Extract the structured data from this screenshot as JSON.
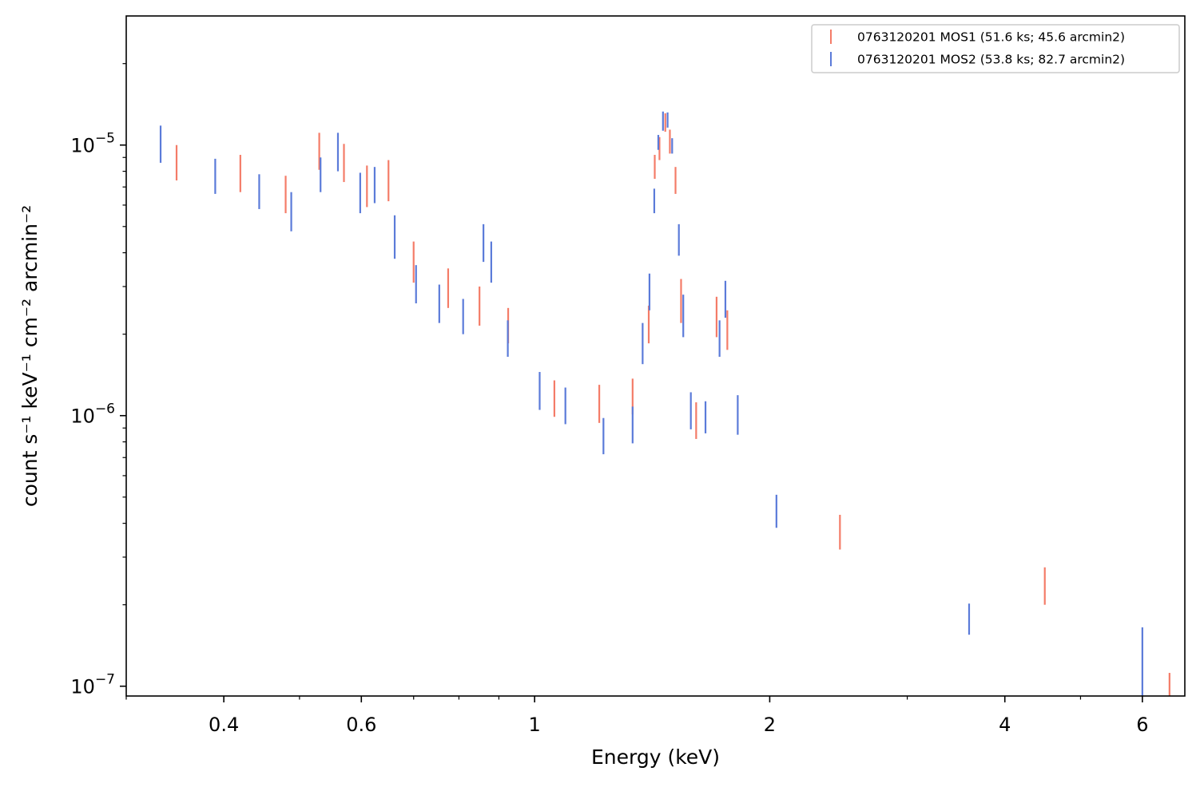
{
  "chart_data": {
    "type": "scatter",
    "style": "vertical error bars (no markers), log-log axes",
    "title": "",
    "xlabel": "Energy (keV)",
    "ylabel": "count s⁻¹ keV⁻¹ cm⁻² arcmin⁻²",
    "xscale": "log",
    "yscale": "log",
    "xlim": [
      0.3,
      6.8
    ],
    "ylim": [
      9.2e-08,
      3e-05
    ],
    "grid": false,
    "legend_position": "upper-right",
    "x_ticks": [
      {
        "value": 0.4,
        "label": "0.4"
      },
      {
        "value": 0.6,
        "label": "0.6"
      },
      {
        "value": 1,
        "label": "1"
      },
      {
        "value": 2,
        "label": "2"
      },
      {
        "value": 4,
        "label": "4"
      },
      {
        "value": 6,
        "label": "6"
      }
    ],
    "x_minor_ticks": [
      0.3,
      0.5,
      0.7,
      0.8,
      0.9,
      3,
      5
    ],
    "y_ticks": [
      {
        "value": 1e-07,
        "base": "10",
        "exp": "−7"
      },
      {
        "value": 1e-06,
        "base": "10",
        "exp": "−6"
      },
      {
        "value": 1e-05,
        "base": "10",
        "exp": "−5"
      }
    ],
    "series": [
      {
        "name": "0763120201 MOS1 (51.6 ks; 45.6 arcmin2)",
        "color": "#f47c68",
        "points": [
          {
            "x": 0.348,
            "ylo": 7.4e-06,
            "yhi": 1e-05
          },
          {
            "x": 0.42,
            "ylo": 6.7e-06,
            "yhi": 9.2e-06
          },
          {
            "x": 0.48,
            "ylo": 5.6e-06,
            "yhi": 7.7e-06
          },
          {
            "x": 0.53,
            "ylo": 8.1e-06,
            "yhi": 1.11e-05
          },
          {
            "x": 0.57,
            "ylo": 7.3e-06,
            "yhi": 1.01e-05
          },
          {
            "x": 0.61,
            "ylo": 5.9e-06,
            "yhi": 8.4e-06
          },
          {
            "x": 0.65,
            "ylo": 6.2e-06,
            "yhi": 8.8e-06
          },
          {
            "x": 0.7,
            "ylo": 3.1e-06,
            "yhi": 4.4e-06
          },
          {
            "x": 0.775,
            "ylo": 2.5e-06,
            "yhi": 3.5e-06
          },
          {
            "x": 0.85,
            "ylo": 2.15e-06,
            "yhi": 3e-06
          },
          {
            "x": 0.925,
            "ylo": 1.85e-06,
            "yhi": 2.5e-06
          },
          {
            "x": 1.06,
            "ylo": 9.9e-07,
            "yhi": 1.35e-06
          },
          {
            "x": 1.21,
            "ylo": 9.4e-07,
            "yhi": 1.3e-06
          },
          {
            "x": 1.335,
            "ylo": 1.01e-06,
            "yhi": 1.37e-06
          },
          {
            "x": 1.4,
            "ylo": 1.85e-06,
            "yhi": 2.55e-06
          },
          {
            "x": 1.425,
            "ylo": 7.5e-06,
            "yhi": 9.2e-06
          },
          {
            "x": 1.445,
            "ylo": 8.8e-06,
            "yhi": 1.07e-05
          },
          {
            "x": 1.47,
            "ylo": 1.12e-05,
            "yhi": 1.31e-05
          },
          {
            "x": 1.49,
            "ylo": 9.3e-06,
            "yhi": 1.14e-05
          },
          {
            "x": 1.515,
            "ylo": 6.6e-06,
            "yhi": 8.3e-06
          },
          {
            "x": 1.54,
            "ylo": 2.2e-06,
            "yhi": 3.2e-06
          },
          {
            "x": 1.61,
            "ylo": 8.2e-07,
            "yhi": 1.12e-06
          },
          {
            "x": 1.71,
            "ylo": 1.95e-06,
            "yhi": 2.75e-06
          },
          {
            "x": 1.765,
            "ylo": 1.75e-06,
            "yhi": 2.45e-06
          },
          {
            "x": 2.46,
            "ylo": 3.2e-07,
            "yhi": 4.3e-07
          },
          {
            "x": 4.5,
            "ylo": 2e-07,
            "yhi": 2.75e-07
          },
          {
            "x": 6.5,
            "ylo": 9.2e-08,
            "yhi": 1.12e-07
          }
        ]
      },
      {
        "name": "0763120201 MOS2 (53.8 ks; 82.7 arcmin2)",
        "color": "#5b7bd9",
        "points": [
          {
            "x": 0.332,
            "ylo": 8.6e-06,
            "yhi": 1.18e-05
          },
          {
            "x": 0.39,
            "ylo": 6.6e-06,
            "yhi": 8.9e-06
          },
          {
            "x": 0.444,
            "ylo": 5.8e-06,
            "yhi": 7.8e-06
          },
          {
            "x": 0.488,
            "ylo": 4.8e-06,
            "yhi": 6.7e-06
          },
          {
            "x": 0.532,
            "ylo": 6.7e-06,
            "yhi": 9e-06
          },
          {
            "x": 0.56,
            "ylo": 8e-06,
            "yhi": 1.11e-05
          },
          {
            "x": 0.598,
            "ylo": 5.6e-06,
            "yhi": 7.9e-06
          },
          {
            "x": 0.624,
            "ylo": 6.1e-06,
            "yhi": 8.3e-06
          },
          {
            "x": 0.662,
            "ylo": 3.8e-06,
            "yhi": 5.5e-06
          },
          {
            "x": 0.705,
            "ylo": 2.6e-06,
            "yhi": 3.6e-06
          },
          {
            "x": 0.755,
            "ylo": 2.2e-06,
            "yhi": 3.05e-06
          },
          {
            "x": 0.81,
            "ylo": 2e-06,
            "yhi": 2.7e-06
          },
          {
            "x": 0.86,
            "ylo": 3.7e-06,
            "yhi": 5.1e-06
          },
          {
            "x": 0.88,
            "ylo": 3.1e-06,
            "yhi": 4.4e-06
          },
          {
            "x": 0.924,
            "ylo": 1.65e-06,
            "yhi": 2.25e-06
          },
          {
            "x": 1.015,
            "ylo": 1.05e-06,
            "yhi": 1.45e-06
          },
          {
            "x": 1.095,
            "ylo": 9.3e-07,
            "yhi": 1.27e-06
          },
          {
            "x": 1.225,
            "ylo": 7.2e-07,
            "yhi": 9.8e-07
          },
          {
            "x": 1.335,
            "ylo": 7.9e-07,
            "yhi": 1.08e-06
          },
          {
            "x": 1.375,
            "ylo": 1.55e-06,
            "yhi": 2.2e-06
          },
          {
            "x": 1.403,
            "ylo": 2.45e-06,
            "yhi": 3.35e-06
          },
          {
            "x": 1.423,
            "ylo": 5.6e-06,
            "yhi": 6.9e-06
          },
          {
            "x": 1.44,
            "ylo": 9.6e-06,
            "yhi": 1.09e-05
          },
          {
            "x": 1.46,
            "ylo": 1.13e-05,
            "yhi": 1.33e-05
          },
          {
            "x": 1.48,
            "ylo": 1.16e-05,
            "yhi": 1.32e-05
          },
          {
            "x": 1.5,
            "ylo": 9.3e-06,
            "yhi": 1.06e-05
          },
          {
            "x": 1.53,
            "ylo": 3.9e-06,
            "yhi": 5.1e-06
          },
          {
            "x": 1.55,
            "ylo": 1.95e-06,
            "yhi": 2.8e-06
          },
          {
            "x": 1.585,
            "ylo": 8.9e-07,
            "yhi": 1.22e-06
          },
          {
            "x": 1.655,
            "ylo": 8.6e-07,
            "yhi": 1.13e-06
          },
          {
            "x": 1.725,
            "ylo": 1.65e-06,
            "yhi": 2.25e-06
          },
          {
            "x": 1.755,
            "ylo": 2.3e-06,
            "yhi": 3.15e-06
          },
          {
            "x": 1.82,
            "ylo": 8.5e-07,
            "yhi": 1.19e-06
          },
          {
            "x": 2.04,
            "ylo": 3.85e-07,
            "yhi": 5.1e-07
          },
          {
            "x": 3.6,
            "ylo": 1.55e-07,
            "yhi": 2.02e-07
          },
          {
            "x": 6.0,
            "ylo": 9.2e-08,
            "yhi": 1.65e-07
          }
        ]
      }
    ]
  }
}
